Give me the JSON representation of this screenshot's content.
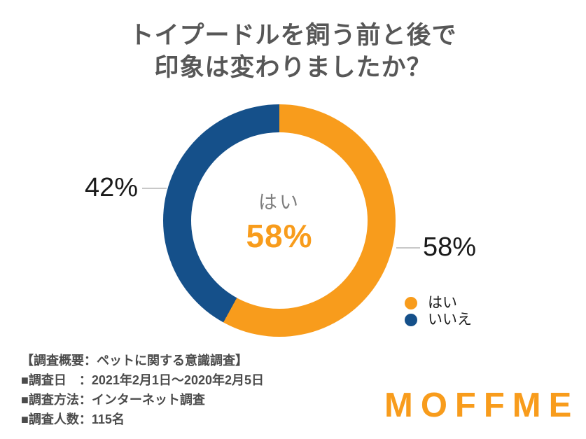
{
  "title": {
    "line1": "トイプードルを飼う前と後で",
    "line2": "印象は変わりましたか？"
  },
  "chart_data": {
    "type": "pie",
    "subtype": "donut",
    "title": "トイプードルを飼う前と後で印象は変わりましたか？",
    "series": [
      {
        "name": "はい",
        "value": 58,
        "unit": "%",
        "color": "#f89c1c"
      },
      {
        "name": "いいえ",
        "value": 42,
        "unit": "%",
        "color": "#15508a"
      }
    ],
    "start_angle_deg": 0,
    "direction": "clockwise",
    "center_label": {
      "label": "はい",
      "value": "58%"
    },
    "callouts": [
      {
        "text": "42%",
        "side": "left",
        "series": "いいえ"
      },
      {
        "text": "58%",
        "side": "right",
        "series": "はい"
      }
    ],
    "legend": {
      "position": "bottom-right",
      "items": [
        "はい",
        "いいえ"
      ]
    }
  },
  "survey": {
    "heading": "【調査概要：ペットに関する意識調査】",
    "date": "■調査日　：2021年2月1日～2020年2月5日",
    "method": "■調査方法：インターネット調査",
    "count": "■調査人数：115名"
  },
  "logo": {
    "text": "MOFFME"
  },
  "colors": {
    "accent_orange": "#f89c1c",
    "accent_blue": "#15508a",
    "title_gray": "#575757",
    "center_label_gray": "#7f7f7f",
    "callout_text": "#1a1a1a",
    "callout_line": "#c8c8c8",
    "survey_text": "#4b4b4b"
  }
}
